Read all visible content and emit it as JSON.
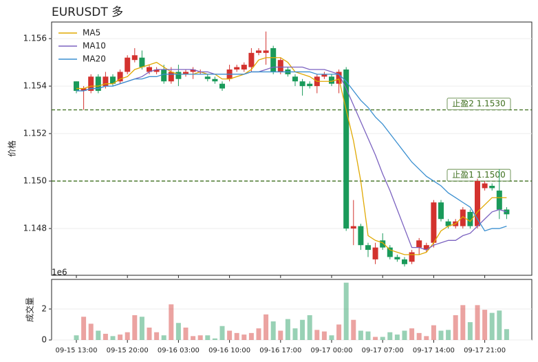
{
  "chart_data": [
    {
      "type": "candlestick",
      "title": "EURUSDT  多",
      "ylabel": "价格",
      "open": [
        1.1542,
        1.1538,
        1.1538,
        1.1544,
        1.154,
        1.1544,
        1.1542,
        1.1546,
        1.1551,
        1.1552,
        1.1546,
        1.1546,
        1.1547,
        1.1542,
        1.1546,
        1.1545,
        1.1546,
        1.1546,
        1.1544,
        1.1543,
        1.1541,
        1.1543,
        1.1547,
        1.1547,
        1.1548,
        1.1554,
        1.1554,
        1.1556,
        1.1546,
        1.1547,
        1.1544,
        1.1542,
        1.1541,
        1.154,
        1.1544,
        1.1544,
        1.1541,
        1.1547,
        1.148,
        1.1481,
        1.1473,
        1.1467,
        1.1475,
        1.1472,
        1.1468,
        1.1467,
        1.1466,
        1.1472,
        1.1471,
        1.1474,
        1.1491,
        1.1483,
        1.1481,
        1.1481,
        1.1487,
        1.1481,
        1.1497,
        1.1498,
        1.1496,
        1.1488
      ],
      "high": [
        1.1542,
        1.154,
        1.1545,
        1.1545,
        1.1546,
        1.1545,
        1.1547,
        1.1553,
        1.1556,
        1.1555,
        1.1549,
        1.1548,
        1.1549,
        1.1548,
        1.1549,
        1.1547,
        1.1548,
        1.1547,
        1.1545,
        1.1544,
        1.1542,
        1.1549,
        1.1549,
        1.155,
        1.1556,
        1.1556,
        1.1563,
        1.1557,
        1.1552,
        1.1548,
        1.1545,
        1.1543,
        1.1542,
        1.1545,
        1.1546,
        1.1545,
        1.1547,
        1.1548,
        1.1492,
        1.1482,
        1.1474,
        1.1474,
        1.1478,
        1.1473,
        1.1469,
        1.1468,
        1.1471,
        1.1476,
        1.1474,
        1.1492,
        1.1492,
        1.1484,
        1.1484,
        1.1489,
        1.1488,
        1.1501,
        1.15,
        1.1499,
        1.1505,
        1.1489
      ],
      "low": [
        1.1537,
        1.153,
        1.1537,
        1.1537,
        1.1539,
        1.154,
        1.1541,
        1.1545,
        1.155,
        1.1547,
        1.1545,
        1.1545,
        1.1541,
        1.1541,
        1.154,
        1.1544,
        1.1543,
        1.1545,
        1.1542,
        1.1541,
        1.1538,
        1.1542,
        1.1546,
        1.1546,
        1.1546,
        1.1553,
        1.1549,
        1.1545,
        1.1545,
        1.1544,
        1.154,
        1.1536,
        1.1539,
        1.1537,
        1.1543,
        1.154,
        1.1537,
        1.1479,
        1.1473,
        1.1471,
        1.1468,
        1.1465,
        1.1471,
        1.1467,
        1.1466,
        1.1464,
        1.1465,
        1.1469,
        1.147,
        1.1472,
        1.1483,
        1.148,
        1.148,
        1.148,
        1.148,
        1.148,
        1.1496,
        1.1496,
        1.1484,
        1.1484
      ],
      "close": [
        1.1538,
        1.1539,
        1.1544,
        1.1538,
        1.1544,
        1.1541,
        1.1546,
        1.1552,
        1.1553,
        1.1548,
        1.1548,
        1.1547,
        1.1542,
        1.1546,
        1.1543,
        1.1546,
        1.1547,
        1.1546,
        1.1543,
        1.1542,
        1.1539,
        1.1547,
        1.1548,
        1.1549,
        1.1554,
        1.1555,
        1.1555,
        1.1546,
        1.1551,
        1.1545,
        1.1542,
        1.154,
        1.154,
        1.1544,
        1.1545,
        1.1541,
        1.1546,
        1.148,
        1.1481,
        1.1473,
        1.1471,
        1.1472,
        1.1472,
        1.1468,
        1.1467,
        1.1465,
        1.147,
        1.1475,
        1.1473,
        1.1491,
        1.1484,
        1.1481,
        1.1483,
        1.1488,
        1.1481,
        1.15,
        1.1499,
        1.1497,
        1.1488,
        1.1486
      ],
      "up_color": "#d3322e",
      "down_color": "#1a9a5a",
      "series": [
        {
          "name": "MA5",
          "color": "#e0a800",
          "values": [
            1.1539,
            1.1539,
            1.154,
            1.154,
            1.1541,
            1.1541,
            1.1543,
            1.1544,
            1.1547,
            1.1548,
            1.1549,
            1.155,
            1.1548,
            1.1546,
            1.1545,
            1.1545,
            1.1545,
            1.1546,
            1.1545,
            1.1545,
            1.1543,
            1.1543,
            1.1544,
            1.1545,
            1.1547,
            1.1551,
            1.1552,
            1.1552,
            1.1552,
            1.155,
            1.1546,
            1.1545,
            1.1544,
            1.1542,
            1.1542,
            1.1542,
            1.1543,
            1.153,
            1.1517,
            1.15,
            1.1477,
            1.1475,
            1.1474,
            1.1471,
            1.147,
            1.1469,
            1.1469,
            1.1469,
            1.147,
            1.1474,
            1.1479,
            1.1481,
            1.1482,
            1.1485,
            1.1483,
            1.1487,
            1.149,
            1.1493,
            1.1493,
            1.1493
          ]
        },
        {
          "name": "MA10",
          "color": "#7b62c0",
          "values": [
            1.1538,
            1.1538,
            1.1539,
            1.1539,
            1.154,
            1.154,
            1.1541,
            1.1542,
            1.1543,
            1.1544,
            1.1546,
            1.1547,
            1.1547,
            1.1547,
            1.1547,
            1.1547,
            1.1547,
            1.1546,
            1.1546,
            1.1545,
            1.1545,
            1.1545,
            1.1545,
            1.1545,
            1.1546,
            1.1546,
            1.1547,
            1.1548,
            1.1548,
            1.1548,
            1.1548,
            1.1548,
            1.1547,
            1.1547,
            1.1547,
            1.1546,
            1.1545,
            1.1539,
            1.1532,
            1.1525,
            1.1518,
            1.1511,
            1.1503,
            1.1496,
            1.1488,
            1.148,
            1.1472,
            1.1472,
            1.1471,
            1.1473,
            1.1474,
            1.1475,
            1.1475,
            1.1477,
            1.1478,
            1.1481,
            1.1484,
            1.1487,
            1.1488,
            1.1487
          ]
        },
        {
          "name": "MA20",
          "color": "#3a8fd0",
          "values": [
            1.1538,
            1.1538,
            1.1539,
            1.1539,
            1.154,
            1.154,
            1.1541,
            1.1542,
            1.1543,
            1.1543,
            1.1544,
            1.1544,
            1.1545,
            1.1545,
            1.1545,
            1.1545,
            1.1545,
            1.1545,
            1.1545,
            1.1545,
            1.1545,
            1.1545,
            1.1545,
            1.1545,
            1.1546,
            1.1546,
            1.1546,
            1.1546,
            1.1546,
            1.1546,
            1.1546,
            1.1546,
            1.1546,
            1.1545,
            1.1545,
            1.1545,
            1.1545,
            1.1542,
            1.1538,
            1.1534,
            1.1531,
            1.1527,
            1.1524,
            1.152,
            1.1516,
            1.1512,
            1.1508,
            1.1505,
            1.1502,
            1.15,
            1.1498,
            1.1495,
            1.1493,
            1.1491,
            1.1489,
            1.1484,
            1.1479,
            1.148,
            1.148,
            1.1481
          ]
        }
      ],
      "legend": "upper left",
      "hlines": [
        {
          "value": 1.153,
          "label": "止盈2 1.1530"
        },
        {
          "value": 1.15,
          "label": "止盈1 1.1500"
        }
      ],
      "hline_color": "#3d6e1c",
      "ylim": [
        1.14603,
        1.1567
      ],
      "yticks": [
        1.148,
        {
          "value": 1.15,
          "label": "1.150"
        },
        1.152,
        1.154,
        1.156
      ],
      "grid": true
    },
    {
      "type": "bar",
      "ylabel": "成交量",
      "offset_text": "1e6",
      "categories": [
        "09-15 13:00",
        null,
        null,
        null,
        null,
        null,
        null,
        "09-15 20:00",
        null,
        null,
        null,
        null,
        null,
        null,
        "09-16 03:00",
        null,
        null,
        null,
        null,
        null,
        null,
        "09-16 10:00",
        null,
        null,
        null,
        null,
        null,
        null,
        "09-16 17:00",
        null,
        null,
        null,
        null,
        null,
        null,
        "09-17 00:00",
        null,
        null,
        null,
        null,
        null,
        null,
        "09-17 07:00",
        null,
        null,
        null,
        null,
        null,
        null,
        "09-17 14:00",
        null,
        null,
        null,
        null,
        null,
        null,
        "09-17 21:00",
        null,
        null,
        null
      ],
      "values": [
        300000,
        1500000,
        1050000,
        600000,
        400000,
        250000,
        350000,
        500000,
        1600000,
        1500000,
        800000,
        500000,
        300000,
        2300000,
        1100000,
        800000,
        250000,
        300000,
        300000,
        100000,
        900000,
        600000,
        450000,
        350000,
        450000,
        750000,
        1650000,
        1200000,
        600000,
        1350000,
        750000,
        1300000,
        1600000,
        650000,
        550000,
        300000,
        1000000,
        3700000,
        1300000,
        600000,
        550000,
        200000,
        200000,
        500000,
        350000,
        600000,
        750000,
        450000,
        250000,
        950000,
        600000,
        650000,
        1600000,
        2250000,
        1150000,
        2250000,
        1950000,
        1750000,
        1900000,
        700000
      ],
      "ylim": [
        0,
        3910000
      ],
      "yticks": [
        0,
        {
          "value": 2000000,
          "label": "2"
        }
      ],
      "grid": true
    }
  ]
}
